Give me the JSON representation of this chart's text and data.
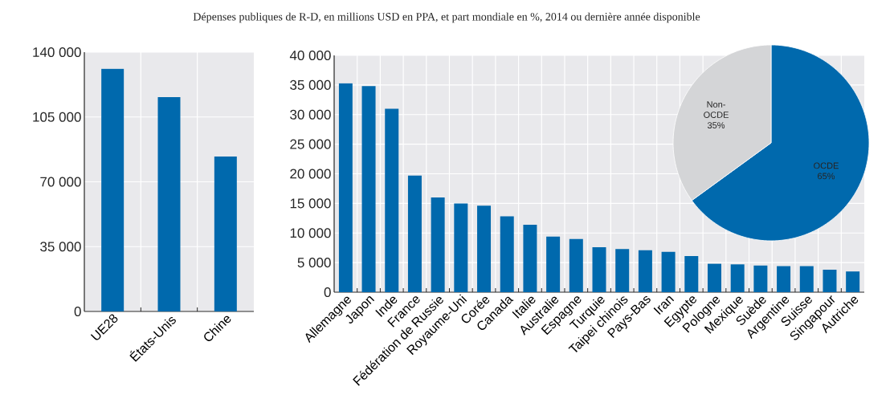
{
  "chart_data": [
    {
      "type": "bar",
      "subtitle": "Dépenses publiques de R-D, en millions USD en PPA, et part mondiale en %, 2014 ou dernière année disponible",
      "categories": [
        "UE28",
        "États-Unis",
        "Chine"
      ],
      "values": [
        131000,
        115700,
        83600
      ],
      "color": "#0069ad",
      "ylim": [
        0,
        140000
      ],
      "yticks": [
        {
          "value": 0,
          "label": "0"
        },
        {
          "value": 35000,
          "label": "35 000"
        },
        {
          "value": 70000,
          "label": "70 000"
        },
        {
          "value": 105000,
          "label": "105 000"
        },
        {
          "value": 140000,
          "label": "140 000"
        }
      ],
      "grid": true
    },
    {
      "type": "bar",
      "categories": [
        "Allemagne",
        "Japon",
        "Inde",
        "France",
        "Fédération de Russie",
        "Royaume-Uni",
        "Corée",
        "Canada",
        "Italie",
        "Australie",
        "Espagne",
        "Turquie",
        "Taipei chinois",
        "Pays-Bas",
        "Iran",
        "Egypte",
        "Pologne",
        "Mexique",
        "Suède",
        "Argentine",
        "Suisse",
        "Singapour",
        "Autriche"
      ],
      "values": [
        35300,
        34800,
        31000,
        19700,
        16000,
        15000,
        14600,
        12800,
        11400,
        9400,
        9000,
        7600,
        7300,
        7100,
        6800,
        6100,
        4800,
        4700,
        4500,
        4400,
        4400,
        3800,
        3500
      ],
      "color": "#0069ad",
      "ylim": [
        0,
        40000
      ],
      "yticks": [
        {
          "value": 0,
          "label": "0"
        },
        {
          "value": 5000,
          "label": "5 000"
        },
        {
          "value": 10000,
          "label": "10 000"
        },
        {
          "value": 15000,
          "label": "15 000"
        },
        {
          "value": 20000,
          "label": "20 000"
        },
        {
          "value": 25000,
          "label": "25 000"
        },
        {
          "value": 30000,
          "label": "30 000"
        },
        {
          "value": 35000,
          "label": "35 000"
        },
        {
          "value": 40000,
          "label": "40 000"
        }
      ],
      "grid": true
    },
    {
      "type": "pie",
      "categories": [
        "OCDE",
        "Non-OCDE"
      ],
      "values": [
        65,
        35
      ],
      "colors": [
        "#0069ad",
        "#d4d5d7"
      ],
      "value_labels": [
        "65%",
        "35%"
      ]
    }
  ]
}
